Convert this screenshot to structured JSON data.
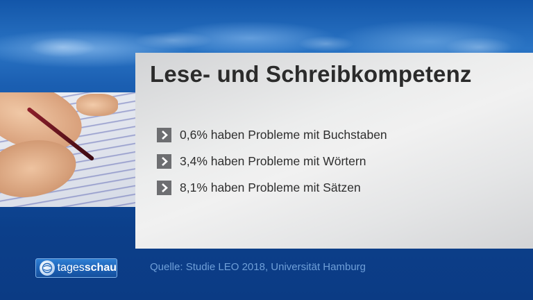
{
  "title": "Lese- und Schreibkompetenz",
  "bullets": [
    {
      "text": "0,6% haben Probleme mit Buchstaben",
      "icon": "chevron-right-icon"
    },
    {
      "text": "3,4% haben Probleme mit Wörtern",
      "icon": "chevron-right-icon"
    },
    {
      "text": "8,1% haben Probleme mit Sätzen",
      "icon": "chevron-right-icon"
    }
  ],
  "logo": {
    "brand_prefix": "tages",
    "brand_suffix": "schau",
    "icon": "globe-icon"
  },
  "source": "Quelle: Studie LEO 2018, Universität Hamburg",
  "colors": {
    "background_blue": "#0e3f86",
    "panel_gray": "#eceded",
    "bullet_box": "#6d6e71",
    "source_text": "#6f9fd8",
    "title_text": "#2b2b2b"
  }
}
